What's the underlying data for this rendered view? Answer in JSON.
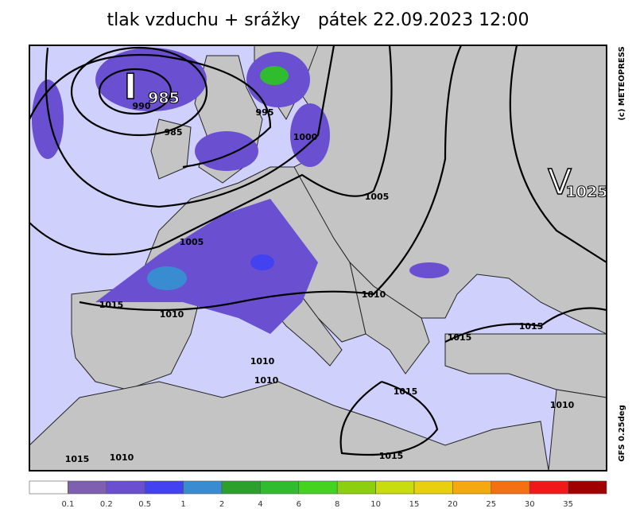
{
  "title": "tlak vzduchu + srážky",
  "date": "pátek 22.09.2023 12:00",
  "credit": "(c) METEOPRESS",
  "model": "GFS 0.25deg",
  "centers": [
    {
      "symbol": "I",
      "value": "985"
    },
    {
      "symbol": "V",
      "value": "1025"
    }
  ],
  "isobar_labels": [
    "990",
    "985",
    "995",
    "1000",
    "1005",
    "1005",
    "1010",
    "1010",
    "1015",
    "1010",
    "1010",
    "1015",
    "1015",
    "1015",
    "1015",
    "1010",
    "1015",
    "1010"
  ],
  "legend": {
    "colors": [
      "#ffffff",
      "#7f5fb0",
      "#6a4fd0",
      "#4242f0",
      "#3a8cd0",
      "#2ca02c",
      "#2fbd2f",
      "#44d420",
      "#8ccf10",
      "#c8dc10",
      "#e8d010",
      "#f5a810",
      "#f47010",
      "#f01818",
      "#a00000"
    ],
    "labels": [
      0.1,
      0.2,
      0.5,
      1,
      2,
      4,
      6,
      8,
      10,
      15,
      20,
      25,
      30,
      35
    ]
  }
}
